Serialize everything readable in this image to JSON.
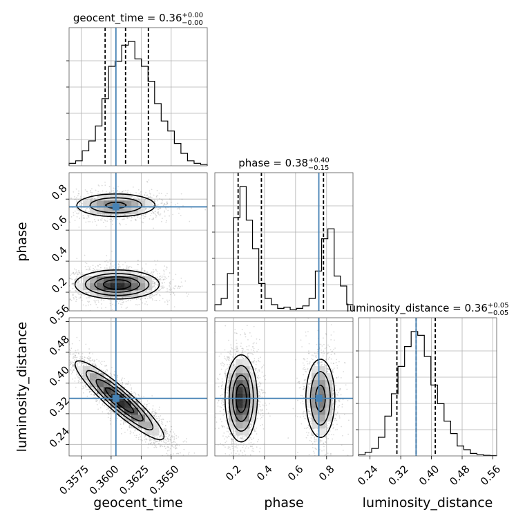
{
  "chart_data": {
    "type": "scatter",
    "kind": "corner-plot",
    "grid": true,
    "parameters": [
      "geocent_time",
      "phase",
      "luminosity_distance"
    ],
    "truths": {
      "geocent_time": 0.3604,
      "phase": 0.75,
      "luminosity_distance": 0.36
    },
    "titles": {
      "geocent_time": {
        "name": "geocent_time",
        "median": "0.36",
        "plus": "+0.00",
        "minus": "−0.00"
      },
      "phase": {
        "name": "phase",
        "median": "0.38",
        "plus": "+0.40",
        "minus": "−0.15"
      },
      "luminosity_distance": {
        "name": "luminosity_distance",
        "median": "0.36",
        "plus": "+0.05",
        "minus": "−0.05"
      }
    },
    "axis_labels": {
      "geocent_time": "geocent_time",
      "phase": "phase",
      "luminosity_distance": "luminosity_distance"
    },
    "ranges": {
      "geocent_time": [
        0.3565,
        0.368
      ],
      "phase": [
        0.08,
        0.97
      ],
      "luminosity_distance": [
        0.21,
        0.57
      ]
    },
    "ticks": {
      "geocent_time": {
        "values": [
          0.3575,
          0.36,
          0.3625,
          0.365
        ],
        "labels": [
          "0.3575",
          "0.3600",
          "0.3625",
          "0.3650"
        ]
      },
      "phase": {
        "values": [
          0.2,
          0.4,
          0.6,
          0.8
        ],
        "labels": [
          "0.2",
          "0.4",
          "0.6",
          "0.8"
        ]
      },
      "luminosity_distance": {
        "values": [
          0.24,
          0.32,
          0.4,
          0.48,
          0.56
        ],
        "labels": [
          "0.24",
          "0.32",
          "0.40",
          "0.48",
          "0.56"
        ]
      }
    },
    "quantiles": {
      "geocent_time": [
        0.3595,
        0.3612,
        0.3631
      ],
      "phase": [
        0.23,
        0.38,
        0.78
      ],
      "luminosity_distance": [
        0.31,
        0.36,
        0.41
      ]
    },
    "histograms": {
      "geocent_time": [
        0.02,
        0.04,
        0.12,
        0.2,
        0.32,
        0.54,
        0.8,
        0.84,
        0.97,
        1.0,
        0.86,
        0.8,
        0.68,
        0.5,
        0.36,
        0.28,
        0.18,
        0.1,
        0.04,
        0.02,
        0.01
      ],
      "phase": [
        0.05,
        0.1,
        0.3,
        0.75,
        1.0,
        0.73,
        0.5,
        0.22,
        0.1,
        0.05,
        0.02,
        0.03,
        0.01,
        0.02,
        0.04,
        0.1,
        0.32,
        0.58,
        0.66,
        0.28,
        0.2,
        0.05
      ],
      "luminosity_distance": [
        0.01,
        0.03,
        0.06,
        0.15,
        0.32,
        0.5,
        0.72,
        0.88,
        1.0,
        0.97,
        0.8,
        0.57,
        0.42,
        0.28,
        0.18,
        0.08,
        0.05,
        0.02,
        0.01,
        0.005,
        0.003
      ]
    },
    "correlations": {
      "geocent_time|luminosity_distance": -0.92
    },
    "modes": {
      "geocent_time|phase": [
        {
          "x": 0.3605,
          "y": 0.25,
          "sx": 0.0017,
          "sy": 0.045,
          "w": 0.62
        },
        {
          "x": 0.3604,
          "y": 0.76,
          "sx": 0.0018,
          "sy": 0.04,
          "w": 0.38
        }
      ],
      "phase|luminosity_distance": [
        {
          "x": 0.25,
          "y": 0.36,
          "sx": 0.05,
          "sy": 0.055,
          "w": 0.6
        },
        {
          "x": 0.76,
          "y": 0.36,
          "sx": 0.05,
          "sy": 0.055,
          "w": 0.4
        }
      ]
    },
    "colors": {
      "truth": "#4682b4",
      "hist": "#000000",
      "scatter": "#9a9a9a",
      "grid": "#b0b0b0"
    }
  }
}
